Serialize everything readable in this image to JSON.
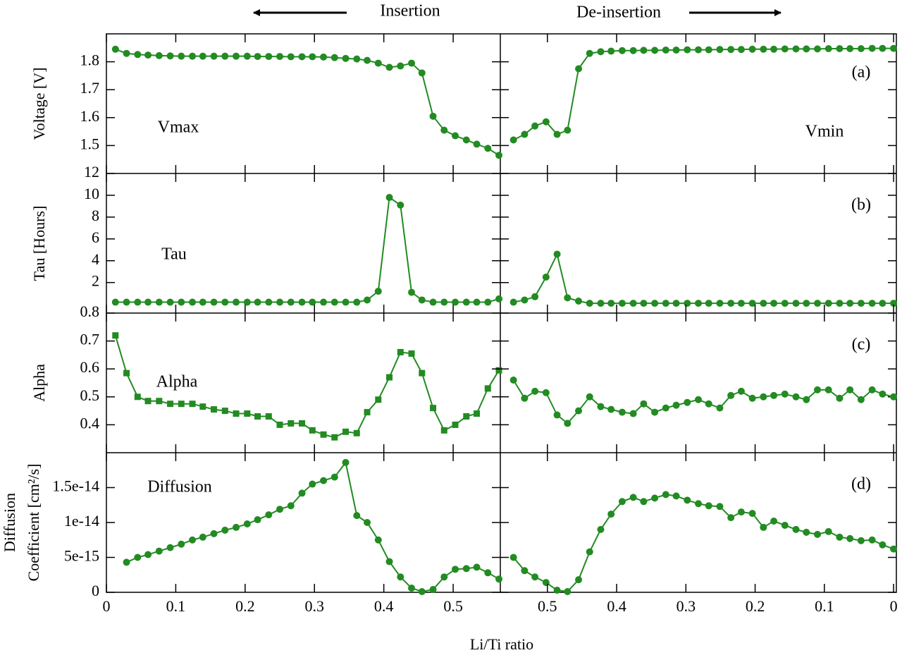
{
  "chart_data": [
    {
      "type": "line",
      "title": "Insertion",
      "ylabel": "Voltage [V]",
      "annotations": [
        "Vmax"
      ],
      "color": "#228b22",
      "marker": "circle",
      "x": [
        0.013,
        0.029,
        0.045,
        0.06,
        0.076,
        0.092,
        0.108,
        0.124,
        0.139,
        0.155,
        0.171,
        0.187,
        0.203,
        0.218,
        0.234,
        0.25,
        0.266,
        0.282,
        0.297,
        0.313,
        0.329,
        0.345,
        0.361,
        0.376,
        0.392,
        0.408,
        0.424,
        0.44,
        0.455,
        0.471,
        0.487,
        0.503,
        0.519,
        0.534,
        0.55,
        0.566
      ],
      "values": [
        1.845,
        1.83,
        1.826,
        1.824,
        1.822,
        1.821,
        1.82,
        1.82,
        1.82,
        1.82,
        1.82,
        1.82,
        1.82,
        1.819,
        1.819,
        1.819,
        1.818,
        1.818,
        1.818,
        1.817,
        1.815,
        1.812,
        1.81,
        1.805,
        1.795,
        1.78,
        1.785,
        1.795,
        1.76,
        1.605,
        1.555,
        1.535,
        1.52,
        1.505,
        1.49,
        1.465
      ],
      "xlim": [
        0,
        0.568
      ],
      "ylim": [
        1.4,
        1.9
      ],
      "yticks": [
        1.5,
        1.6,
        1.7,
        1.8
      ]
    },
    {
      "type": "line",
      "title": "De-insertion",
      "annotations": [
        "Vmin",
        "(a)"
      ],
      "color": "#228b22",
      "marker": "circle",
      "x": [
        0.549,
        0.533,
        0.518,
        0.502,
        0.486,
        0.471,
        0.455,
        0.439,
        0.423,
        0.408,
        0.392,
        0.376,
        0.361,
        0.345,
        0.329,
        0.314,
        0.298,
        0.282,
        0.267,
        0.251,
        0.235,
        0.22,
        0.204,
        0.188,
        0.173,
        0.157,
        0.141,
        0.126,
        0.11,
        0.094,
        0.078,
        0.063,
        0.047,
        0.031,
        0.016,
        0.0
      ],
      "values": [
        1.52,
        1.54,
        1.57,
        1.585,
        1.54,
        1.555,
        1.775,
        1.83,
        1.836,
        1.838,
        1.84,
        1.84,
        1.841,
        1.841,
        1.842,
        1.842,
        1.843,
        1.843,
        1.843,
        1.844,
        1.844,
        1.844,
        1.845,
        1.845,
        1.845,
        1.846,
        1.846,
        1.846,
        1.846,
        1.847,
        1.847,
        1.847,
        1.847,
        1.848,
        1.848,
        1.848
      ],
      "xlim": [
        0.568,
        -0.004
      ],
      "ylim": [
        1.4,
        1.9
      ]
    },
    {
      "type": "line",
      "ylabel": "Tau [Hours]",
      "annotations": [
        "Tau"
      ],
      "color": "#228b22",
      "marker": "circle",
      "x": [
        0.013,
        0.029,
        0.045,
        0.06,
        0.076,
        0.092,
        0.108,
        0.124,
        0.139,
        0.155,
        0.171,
        0.187,
        0.203,
        0.218,
        0.234,
        0.25,
        0.266,
        0.282,
        0.297,
        0.313,
        0.329,
        0.345,
        0.361,
        0.376,
        0.392,
        0.408,
        0.424,
        0.44,
        0.455,
        0.471,
        0.487,
        0.503,
        0.519,
        0.534,
        0.55,
        0.566
      ],
      "values": [
        0.2,
        0.2,
        0.2,
        0.2,
        0.2,
        0.2,
        0.2,
        0.2,
        0.2,
        0.2,
        0.2,
        0.2,
        0.2,
        0.2,
        0.2,
        0.2,
        0.2,
        0.2,
        0.2,
        0.2,
        0.2,
        0.2,
        0.2,
        0.4,
        1.2,
        9.8,
        9.1,
        1.1,
        0.4,
        0.2,
        0.2,
        0.2,
        0.2,
        0.2,
        0.2,
        0.5
      ],
      "xlim": [
        0,
        0.568
      ],
      "ylim": [
        -0.8,
        12
      ],
      "yticks": [
        2,
        4,
        6,
        8,
        10,
        12
      ]
    },
    {
      "type": "line",
      "annotations": [
        "(b)"
      ],
      "color": "#228b22",
      "marker": "circle",
      "x": [
        0.549,
        0.533,
        0.518,
        0.502,
        0.486,
        0.471,
        0.455,
        0.439,
        0.423,
        0.408,
        0.392,
        0.376,
        0.361,
        0.345,
        0.329,
        0.314,
        0.298,
        0.282,
        0.267,
        0.251,
        0.235,
        0.22,
        0.204,
        0.188,
        0.173,
        0.157,
        0.141,
        0.126,
        0.11,
        0.094,
        0.078,
        0.063,
        0.047,
        0.031,
        0.016,
        0.0
      ],
      "values": [
        0.2,
        0.4,
        0.7,
        2.5,
        4.6,
        0.6,
        0.3,
        0.1,
        0.1,
        0.1,
        0.1,
        0.1,
        0.1,
        0.1,
        0.1,
        0.1,
        0.1,
        0.1,
        0.1,
        0.1,
        0.1,
        0.1,
        0.1,
        0.1,
        0.1,
        0.1,
        0.1,
        0.1,
        0.1,
        0.1,
        0.1,
        0.1,
        0.1,
        0.1,
        0.1,
        0.1
      ],
      "xlim": [
        0.568,
        -0.004
      ],
      "ylim": [
        -0.8,
        12
      ]
    },
    {
      "type": "line",
      "ylabel": "Alpha",
      "annotations": [
        "Alpha"
      ],
      "color": "#228b22",
      "marker": "square",
      "x": [
        0.013,
        0.029,
        0.045,
        0.06,
        0.076,
        0.092,
        0.108,
        0.124,
        0.139,
        0.155,
        0.171,
        0.187,
        0.203,
        0.218,
        0.234,
        0.25,
        0.266,
        0.282,
        0.297,
        0.313,
        0.329,
        0.345,
        0.361,
        0.376,
        0.392,
        0.408,
        0.424,
        0.44,
        0.455,
        0.471,
        0.487,
        0.503,
        0.519,
        0.534,
        0.55,
        0.566
      ],
      "values": [
        0.72,
        0.585,
        0.5,
        0.485,
        0.485,
        0.475,
        0.475,
        0.475,
        0.465,
        0.455,
        0.45,
        0.44,
        0.44,
        0.43,
        0.43,
        0.4,
        0.405,
        0.405,
        0.38,
        0.365,
        0.355,
        0.375,
        0.37,
        0.445,
        0.49,
        0.57,
        0.66,
        0.655,
        0.585,
        0.46,
        0.38,
        0.4,
        0.43,
        0.44,
        0.53,
        0.595
      ],
      "xlim": [
        0,
        0.568
      ],
      "ylim": [
        0.3,
        0.8
      ],
      "yticks": [
        0.4,
        0.5,
        0.6,
        0.7,
        0.8
      ]
    },
    {
      "type": "line",
      "annotations": [
        "(c)"
      ],
      "color": "#228b22",
      "marker": "circle",
      "x": [
        0.549,
        0.533,
        0.518,
        0.502,
        0.486,
        0.471,
        0.455,
        0.439,
        0.423,
        0.408,
        0.392,
        0.376,
        0.361,
        0.345,
        0.329,
        0.314,
        0.298,
        0.282,
        0.267,
        0.251,
        0.235,
        0.22,
        0.204,
        0.188,
        0.173,
        0.157,
        0.141,
        0.126,
        0.11,
        0.094,
        0.078,
        0.063,
        0.047,
        0.031,
        0.016,
        0.0
      ],
      "values": [
        0.56,
        0.495,
        0.52,
        0.515,
        0.435,
        0.405,
        0.45,
        0.5,
        0.465,
        0.455,
        0.445,
        0.44,
        0.475,
        0.445,
        0.46,
        0.47,
        0.48,
        0.49,
        0.475,
        0.46,
        0.505,
        0.52,
        0.495,
        0.5,
        0.505,
        0.51,
        0.5,
        0.49,
        0.525,
        0.525,
        0.495,
        0.525,
        0.49,
        0.525,
        0.51,
        0.5
      ],
      "xlim": [
        0.568,
        -0.004
      ],
      "ylim": [
        0.3,
        0.8
      ]
    },
    {
      "type": "line",
      "ylabel": [
        "Diffusion",
        "Coefficient [cm²/s]"
      ],
      "annotations": [
        "Diffusion"
      ],
      "xlabel": "Li/Ti ratio",
      "color": "#228b22",
      "marker": "circle",
      "x": [
        0.013,
        0.029,
        0.045,
        0.06,
        0.076,
        0.092,
        0.108,
        0.124,
        0.139,
        0.155,
        0.171,
        0.187,
        0.203,
        0.218,
        0.234,
        0.25,
        0.266,
        0.282,
        0.297,
        0.313,
        0.329,
        0.345,
        0.361,
        0.376,
        0.392,
        0.408,
        0.424,
        0.44,
        0.455,
        0.471,
        0.487,
        0.503,
        0.519,
        0.534,
        0.55,
        0.566
      ],
      "values": [
        null,
        4.3e-15,
        5e-15,
        5.4e-15,
        5.9e-15,
        6.4e-15,
        6.9e-15,
        7.5e-15,
        7.9e-15,
        8.4e-15,
        8.9e-15,
        9.3e-15,
        9.8e-15,
        1.04e-14,
        1.11e-14,
        1.19e-14,
        1.24e-14,
        1.42e-14,
        1.55e-14,
        1.6e-14,
        1.65e-14,
        1.86e-14,
        1.1e-14,
        1e-14,
        7.5e-15,
        4.4e-15,
        2.2e-15,
        6e-16,
        1e-16,
        4e-16,
        2.2e-15,
        3.3e-15,
        3.4e-15,
        3.6e-15,
        2.8e-15,
        1.9e-15
      ],
      "xlim": [
        0,
        0.568
      ],
      "ylim": [
        0,
        2e-14
      ],
      "yticks": [
        0,
        5e-15,
        1e-14,
        1.5e-14
      ],
      "xticks": [
        0,
        0.1,
        0.2,
        0.3,
        0.4,
        0.5
      ]
    },
    {
      "type": "line",
      "annotations": [
        "(d)"
      ],
      "color": "#228b22",
      "marker": "circle",
      "x": [
        0.549,
        0.533,
        0.518,
        0.502,
        0.486,
        0.471,
        0.455,
        0.439,
        0.423,
        0.408,
        0.392,
        0.376,
        0.361,
        0.345,
        0.329,
        0.314,
        0.298,
        0.282,
        0.267,
        0.251,
        0.235,
        0.22,
        0.204,
        0.188,
        0.173,
        0.157,
        0.141,
        0.126,
        0.11,
        0.094,
        0.078,
        0.063,
        0.047,
        0.031,
        0.016,
        0.0
      ],
      "values": [
        5e-15,
        3.1e-15,
        2.2e-15,
        1.4e-15,
        3e-16,
        1e-16,
        1.8e-15,
        5.8e-15,
        9e-15,
        1.12e-14,
        1.3e-14,
        1.36e-14,
        1.3e-14,
        1.35e-14,
        1.4e-14,
        1.38e-14,
        1.32e-14,
        1.27e-14,
        1.24e-14,
        1.23e-14,
        1.07e-14,
        1.15e-14,
        1.13e-14,
        9.3e-15,
        1.02e-14,
        9.6e-15,
        9e-15,
        8.6e-15,
        8.3e-15,
        8.7e-15,
        7.9e-15,
        7.7e-15,
        7.4e-15,
        7.5e-15,
        6.8e-15,
        6.2e-15
      ],
      "xlim": [
        0.568,
        -0.004
      ],
      "ylim": [
        0,
        2e-14
      ],
      "xticks": [
        0.5,
        0.4,
        0.3,
        0.2,
        0.1,
        0
      ]
    }
  ]
}
